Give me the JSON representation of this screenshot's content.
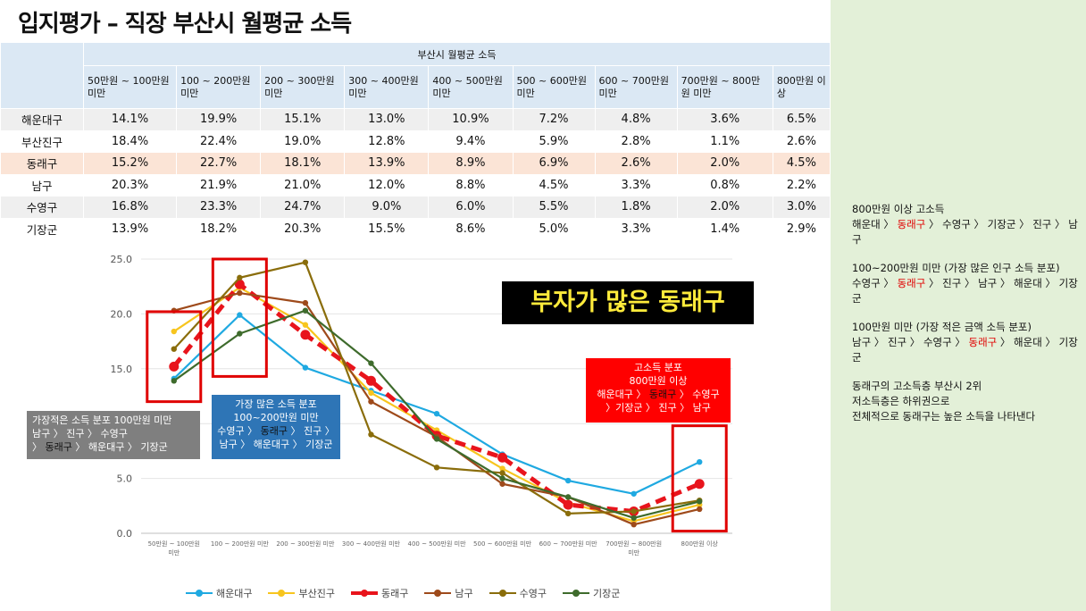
{
  "page": {
    "title": "입지평가 – 직장 부산시 월평균 소득"
  },
  "table": {
    "group_header": "부산시 월평균 소득",
    "columns": [
      "50만원 ~ 100만원 미만",
      "100 ~ 200만원 미만",
      "200 ~ 300만원 미만",
      "300 ~ 400만원 미만",
      "400 ~ 500만원 미만",
      "500 ~ 600만원 미만",
      "600 ~ 700만원 미만",
      "700만원 ~ 800만원 미만",
      "800만원 이상"
    ],
    "rows": [
      {
        "name": "해운대구",
        "values": [
          "14.1%",
          "19.9%",
          "15.1%",
          "13.0%",
          "10.9%",
          "7.2%",
          "4.8%",
          "3.6%",
          "6.5%"
        ]
      },
      {
        "name": "부산진구",
        "values": [
          "18.4%",
          "22.4%",
          "19.0%",
          "12.8%",
          "9.4%",
          "5.9%",
          "2.8%",
          "1.1%",
          "2.6%"
        ]
      },
      {
        "name": "동래구",
        "values": [
          "15.2%",
          "22.7%",
          "18.1%",
          "13.9%",
          "8.9%",
          "6.9%",
          "2.6%",
          "2.0%",
          "4.5%"
        ]
      },
      {
        "name": "남구",
        "values": [
          "20.3%",
          "21.9%",
          "21.0%",
          "12.0%",
          "8.8%",
          "4.5%",
          "3.3%",
          "0.8%",
          "2.2%"
        ]
      },
      {
        "name": "수영구",
        "values": [
          "16.8%",
          "23.3%",
          "24.7%",
          "9.0%",
          "6.0%",
          "5.5%",
          "1.8%",
          "2.0%",
          "3.0%"
        ]
      },
      {
        "name": "기장군",
        "values": [
          "13.9%",
          "18.2%",
          "20.3%",
          "15.5%",
          "8.6%",
          "5.0%",
          "3.3%",
          "1.4%",
          "2.9%"
        ]
      }
    ]
  },
  "chart_data": {
    "type": "line",
    "title": "",
    "xlabel": "",
    "ylabel": "",
    "ylim": [
      0,
      25
    ],
    "y_ticks": [
      "0.0",
      "5.0",
      "10.0",
      "15.0",
      "20.0",
      "25.0"
    ],
    "categories": [
      "50만원 ~ 100만원 미만",
      "100 ~ 200만원 미만",
      "200 ~ 300만원 미만",
      "300 ~ 400만원 미만",
      "400 ~ 500만원 미만",
      "500 ~ 600만원 미만",
      "600 ~ 700만원 미만",
      "700만원 ~ 800만원 미만",
      "800만원 이상"
    ],
    "category_labels": [
      [
        "50만원 ~ 100만원",
        "미만"
      ],
      [
        "100 ~ 200만원 미만"
      ],
      [
        "200 ~ 300만원 미만"
      ],
      [
        "300 ~ 400만원 미만"
      ],
      [
        "400 ~ 500만원 미만"
      ],
      [
        "500 ~ 600만원 미만"
      ],
      [
        "600 ~ 700만원 미만"
      ],
      [
        "700만원 ~ 800만원",
        "미만"
      ],
      [
        "800만원 이상"
      ]
    ],
    "legend_position": "bottom",
    "series": [
      {
        "name": "해운대구",
        "color": "#1fa9e1",
        "style": "solid",
        "values": [
          14.1,
          19.9,
          15.1,
          13.0,
          10.9,
          7.2,
          4.8,
          3.6,
          6.5
        ]
      },
      {
        "name": "부산진구",
        "color": "#f7c51e",
        "style": "solid",
        "values": [
          18.4,
          22.4,
          19.0,
          12.8,
          9.4,
          5.9,
          2.8,
          1.1,
          2.6
        ]
      },
      {
        "name": "동래구",
        "color": "#e8141c",
        "style": "dashed",
        "values": [
          15.2,
          22.7,
          18.1,
          13.9,
          8.9,
          6.9,
          2.6,
          2.0,
          4.5
        ]
      },
      {
        "name": "남구",
        "color": "#9e4a1b",
        "style": "solid",
        "values": [
          20.3,
          21.9,
          21.0,
          12.0,
          8.8,
          4.5,
          3.3,
          0.8,
          2.2
        ]
      },
      {
        "name": "수영구",
        "color": "#8a6d0b",
        "style": "solid",
        "values": [
          16.8,
          23.3,
          24.7,
          9.0,
          6.0,
          5.5,
          1.8,
          2.0,
          3.0
        ]
      },
      {
        "name": "기장군",
        "color": "#3e6b2c",
        "style": "solid",
        "values": [
          13.9,
          18.2,
          20.3,
          15.5,
          8.6,
          5.0,
          3.3,
          1.4,
          2.9
        ]
      }
    ],
    "highlight_category_indices": [
      0,
      1,
      8
    ]
  },
  "annotations": {
    "banner": "부자가 많은 동래구",
    "low_income_box": {
      "line1": "가장적은 소득 분포 100만원 미만",
      "line2": "남구 〉 진구 〉 수영구",
      "line3_a": "〉",
      "line3_hl": "동래구",
      "line3_b": "〉 해운대구 〉 기장군"
    },
    "mid_income_box": {
      "line1": "가장 많은 소득 분포",
      "line2": "100~200만원  미만",
      "line3_a": "수영구 〉",
      "line3_hl": "동래구",
      "line3_b": "〉 진구 〉",
      "line4": "남구 〉 해운대구 〉 기장군"
    },
    "high_income_box": {
      "line1": "고소득 분포",
      "line2": "800만원  이상",
      "line3_a": "해운대구 〉",
      "line3_hl": "동래구",
      "line3_b": "〉 수영구",
      "line4": "〉기장군 〉 진구 〉 남구"
    }
  },
  "notes": [
    {
      "line1": "800만원 이상 고소득",
      "line2_a": "해운대 〉",
      "line2_hl": "동래구",
      "line2_b": "〉 수영구 〉 기장군 〉 진구 〉 남구"
    },
    {
      "line1": "100~200만원 미만 (가장 많은 인구 소득 분포)",
      "line2_a": "수영구 〉",
      "line2_hl": "동래구",
      "line2_b": "〉 진구 〉 남구 〉 해운대 〉 기장군"
    },
    {
      "line1": "100만원 미만 (가장 적은 금액 소득 분포)",
      "line2_a": "남구 〉 진구 〉 수영구 〉",
      "line2_hl": "동래구",
      "line2_b": "〉 해운대 〉 기장군"
    }
  ],
  "summary": {
    "line1": "동래구의 고소득층 부산시 2위",
    "line2": "저소득층은 하위권으로",
    "line3": "전체적으로 동래구는 높은 소득을 나타낸다"
  }
}
